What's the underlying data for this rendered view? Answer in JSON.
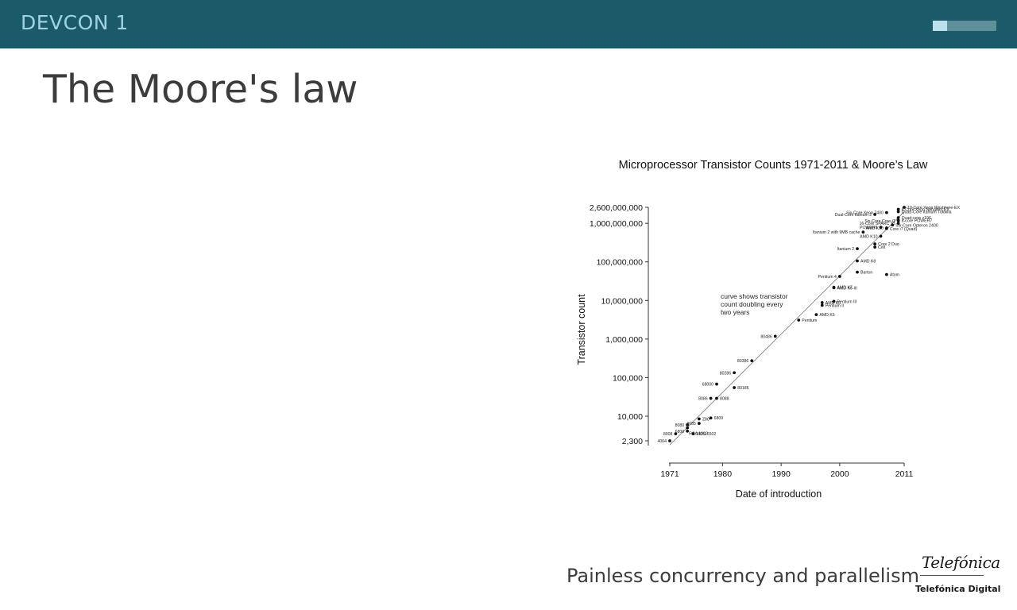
{
  "header": {
    "brand": "DEVCON 1",
    "progress_fraction": 0.22
  },
  "slide": {
    "title": "The Moore's law"
  },
  "footer": {
    "text": "Painless concurrency and parallelism",
    "logo_script": "Telefónica",
    "logo_sub": "Telefónica Digital"
  },
  "colors": {
    "header_bg": "#1b5a68",
    "brand_text": "#9fd3e2"
  },
  "chart_data": {
    "type": "scatter",
    "title": "Microprocessor Transistor Counts 1971-2011 & Moore’s Law",
    "xlabel": "Date of introduction",
    "ylabel": "Transistor count",
    "xlim": [
      1971,
      2011
    ],
    "ylim": [
      2300,
      2600000000
    ],
    "yscale": "log",
    "x_ticks": [
      1971,
      1980,
      1990,
      2000,
      2011
    ],
    "y_ticks": [
      {
        "value": 2300,
        "label": "2,300"
      },
      {
        "value": 10000,
        "label": "10,000"
      },
      {
        "value": 100000,
        "label": "100,000"
      },
      {
        "value": 1000000,
        "label": "1,000,000"
      },
      {
        "value": 10000000,
        "label": "10,000,000"
      },
      {
        "value": 100000000,
        "label": "100,000,000"
      },
      {
        "value": 1000000000,
        "label": "1,000,000,000"
      },
      {
        "value": 2600000000,
        "label": "2,600,000,000"
      }
    ],
    "annotation": [
      "curve shows transistor",
      "count doubling every",
      "two years"
    ],
    "trend_line": {
      "x": [
        1971,
        2011
      ],
      "y": [
        1800,
        2000000000
      ]
    },
    "points": [
      {
        "name": "4004",
        "x": 1971,
        "y": 2300,
        "side": "left"
      },
      {
        "name": "8008",
        "x": 1972,
        "y": 3500,
        "side": "left"
      },
      {
        "name": "RCA 1802",
        "x": 1974,
        "y": 5000,
        "side": "below"
      },
      {
        "name": "MOS 6502",
        "x": 1975,
        "y": 3510,
        "side": "right"
      },
      {
        "name": "8080",
        "x": 1974,
        "y": 6000,
        "side": "left"
      },
      {
        "name": "6800",
        "x": 1974,
        "y": 4100,
        "side": "left"
      },
      {
        "name": "Z80",
        "x": 1976,
        "y": 8500,
        "side": "right"
      },
      {
        "name": "8085",
        "x": 1976,
        "y": 6500,
        "side": "left"
      },
      {
        "name": "6809",
        "x": 1978,
        "y": 9000,
        "side": "right"
      },
      {
        "name": "8086",
        "x": 1978,
        "y": 29000,
        "side": "left"
      },
      {
        "name": "8088",
        "x": 1979,
        "y": 29000,
        "side": "right"
      },
      {
        "name": "68000",
        "x": 1979,
        "y": 68000,
        "side": "left"
      },
      {
        "name": "80186",
        "x": 1982,
        "y": 55000,
        "side": "right"
      },
      {
        "name": "80286",
        "x": 1982,
        "y": 134000,
        "side": "left"
      },
      {
        "name": "80386",
        "x": 1985,
        "y": 275000,
        "side": "left"
      },
      {
        "name": "80486",
        "x": 1989,
        "y": 1180000,
        "side": "left"
      },
      {
        "name": "Pentium",
        "x": 1993,
        "y": 3100000,
        "side": "right"
      },
      {
        "name": "AMD K5",
        "x": 1996,
        "y": 4300000,
        "side": "right"
      },
      {
        "name": "Pentium II",
        "x": 1997,
        "y": 7500000,
        "side": "right"
      },
      {
        "name": "AMD K6",
        "x": 1997,
        "y": 8800000,
        "side": "right"
      },
      {
        "name": "Pentium III",
        "x": 1999,
        "y": 9500000,
        "side": "right"
      },
      {
        "name": "AMD K6-III",
        "x": 1999,
        "y": 21300000,
        "side": "right"
      },
      {
        "name": "AMD K7",
        "x": 1999,
        "y": 22000000,
        "side": "right"
      },
      {
        "name": "Pentium 4",
        "x": 2000,
        "y": 42000000,
        "side": "left"
      },
      {
        "name": "Barton",
        "x": 2003,
        "y": 54300000,
        "side": "right"
      },
      {
        "name": "Atom",
        "x": 2008,
        "y": 47000000,
        "side": "right"
      },
      {
        "name": "AMD K8",
        "x": 2003,
        "y": 105900000,
        "side": "right"
      },
      {
        "name": "Itanium 2",
        "x": 2003,
        "y": 220000000,
        "side": "left"
      },
      {
        "name": "Cell",
        "x": 2006,
        "y": 241000000,
        "side": "right"
      },
      {
        "name": "Core 2 Duo",
        "x": 2006,
        "y": 291000000,
        "side": "right"
      },
      {
        "name": "AMD K10",
        "x": 2007,
        "y": 463000000,
        "side": "left"
      },
      {
        "name": "Itanium 2 with 9MB cache",
        "x": 2004,
        "y": 592000000,
        "side": "left"
      },
      {
        "name": "Core i7 (Quad)",
        "x": 2008,
        "y": 731000000,
        "side": "right"
      },
      {
        "name": "POWER6",
        "x": 2007,
        "y": 789000000,
        "side": "left"
      },
      {
        "name": "Six-Core Opteron 2400",
        "x": 2009,
        "y": 904000000,
        "side": "right"
      },
      {
        "name": "AMD K10",
        "x": 2008,
        "y": 758000000,
        "side": "left"
      },
      {
        "name": "Dual-Core Itanium 2",
        "x": 2006,
        "y": 1700000000,
        "side": "left"
      },
      {
        "name": "8-Core Xeon Nehalem-EX",
        "x": 2010,
        "y": 2300000000,
        "side": "right"
      },
      {
        "name": "Quad-Core Itanium Tukwila",
        "x": 2010,
        "y": 2000000000,
        "side": "right"
      },
      {
        "name": "Quad-core z196",
        "x": 2010,
        "y": 1400000000,
        "side": "right"
      },
      {
        "name": "8-core POWER7",
        "x": 2010,
        "y": 1200000000,
        "side": "right"
      },
      {
        "name": "Six-Core Xeon 7400",
        "x": 2008,
        "y": 1900000000,
        "side": "left"
      },
      {
        "name": "Six-Core Core i7",
        "x": 2010,
        "y": 1170000000,
        "side": "left"
      },
      {
        "name": "16-Core SPARC T3",
        "x": 2010,
        "y": 1000000000,
        "side": "left"
      },
      {
        "name": "10-Core Xeon Westmere-EX",
        "x": 2011,
        "y": 2600000000,
        "side": "right"
      }
    ]
  }
}
